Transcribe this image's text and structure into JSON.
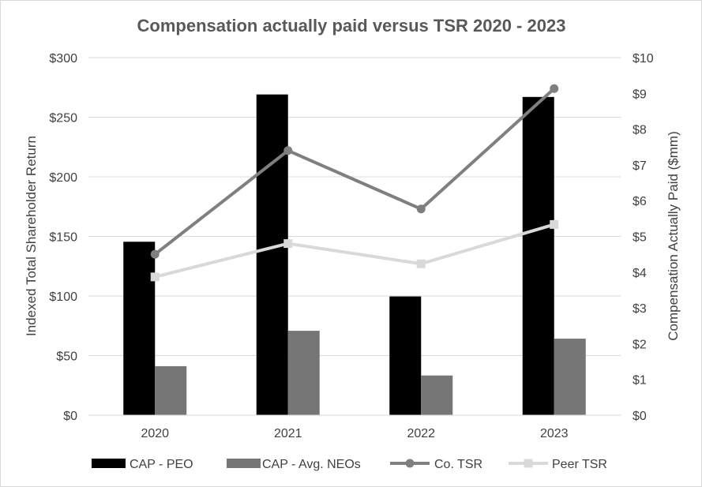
{
  "chart_data": {
    "type": "bar",
    "title": "Compensation actually paid versus TSR 2020 - 2023",
    "categories": [
      "2020",
      "2021",
      "2022",
      "2023"
    ],
    "y_left": {
      "label": "Indexed Total Shareholder Return",
      "range": [
        0,
        300
      ],
      "ticks": [
        0,
        50,
        100,
        150,
        200,
        250,
        300
      ],
      "tick_labels": [
        "$0",
        "$50",
        "$100",
        "$150",
        "$200",
        "$250",
        "$300"
      ]
    },
    "y_right": {
      "label": "Compensation Actually Paid ($mm)",
      "range": [
        0,
        10
      ],
      "ticks": [
        0,
        1,
        2,
        3,
        4,
        5,
        6,
        7,
        8,
        9,
        10
      ],
      "tick_labels": [
        "$0",
        "$1",
        "$2",
        "$3",
        "$4",
        "$5",
        "$6",
        "$7",
        "$8",
        "$9",
        "$10"
      ]
    },
    "series": [
      {
        "name": "CAP - PEO",
        "kind": "bar",
        "axis": "right",
        "color": "#000000",
        "values": [
          4.85,
          8.97,
          3.32,
          8.9
        ]
      },
      {
        "name": "CAP - Avg. NEOs",
        "kind": "bar",
        "axis": "right",
        "color": "#767676",
        "values": [
          1.37,
          2.36,
          1.11,
          2.14
        ]
      },
      {
        "name": "Co. TSR",
        "kind": "line",
        "marker": "circle",
        "axis": "left",
        "color": "#7f7f7f",
        "values": [
          135,
          222,
          173,
          274
        ]
      },
      {
        "name": "Peer TSR",
        "kind": "line",
        "marker": "square",
        "axis": "left",
        "color": "#d9d9d9",
        "values": [
          116,
          144,
          127,
          160
        ]
      }
    ],
    "gridlines": true,
    "legend_position": "bottom"
  }
}
